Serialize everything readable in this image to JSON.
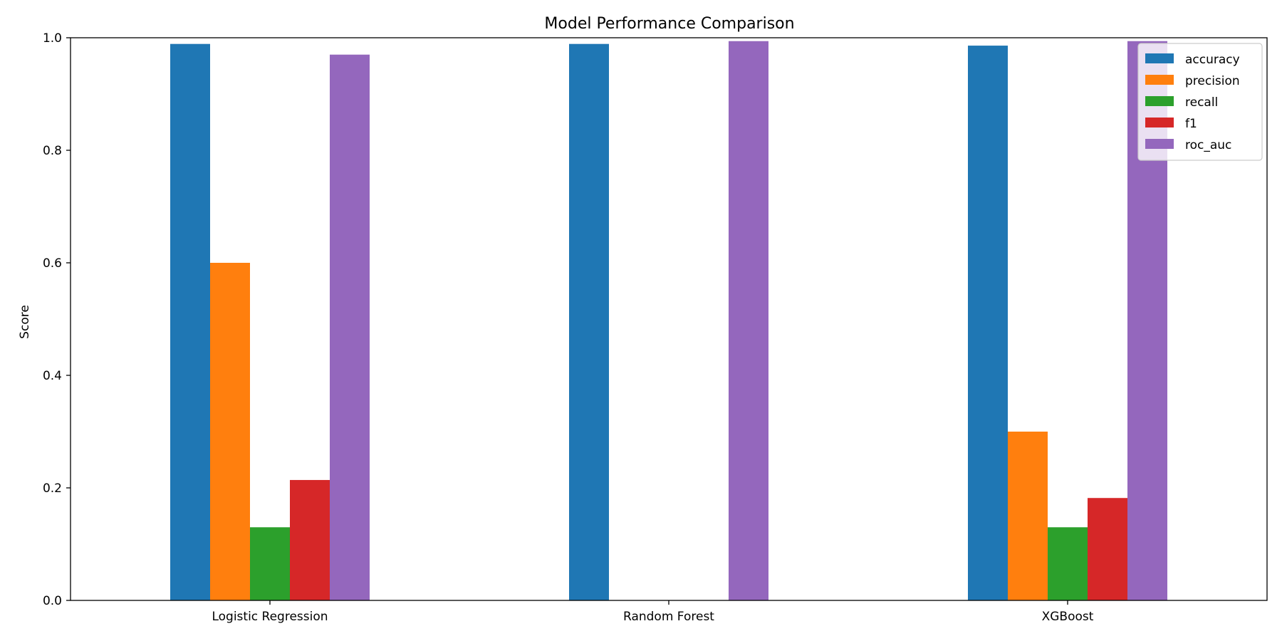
{
  "chart_data": {
    "type": "bar",
    "title": "Model Performance Comparison",
    "xlabel": "",
    "ylabel": "Score",
    "ylim": [
      0,
      1.0
    ],
    "yticks": [
      0.0,
      0.2,
      0.4,
      0.6,
      0.8,
      1.0
    ],
    "categories": [
      "Logistic Regression",
      "Random Forest",
      "XGBoost"
    ],
    "series": [
      {
        "name": "accuracy",
        "color": "#1f77b4",
        "values": [
          0.989,
          0.989,
          0.986
        ]
      },
      {
        "name": "precision",
        "color": "#ff7f0e",
        "values": [
          0.6,
          0.0,
          0.3
        ]
      },
      {
        "name": "recall",
        "color": "#2ca02c",
        "values": [
          0.13,
          0.0,
          0.13
        ]
      },
      {
        "name": "f1",
        "color": "#d62728",
        "values": [
          0.214,
          0.0,
          0.182
        ]
      },
      {
        "name": "roc_auc",
        "color": "#9467bd",
        "values": [
          0.97,
          0.994,
          0.994
        ]
      }
    ],
    "grid": false,
    "legend_position": "top-right"
  }
}
